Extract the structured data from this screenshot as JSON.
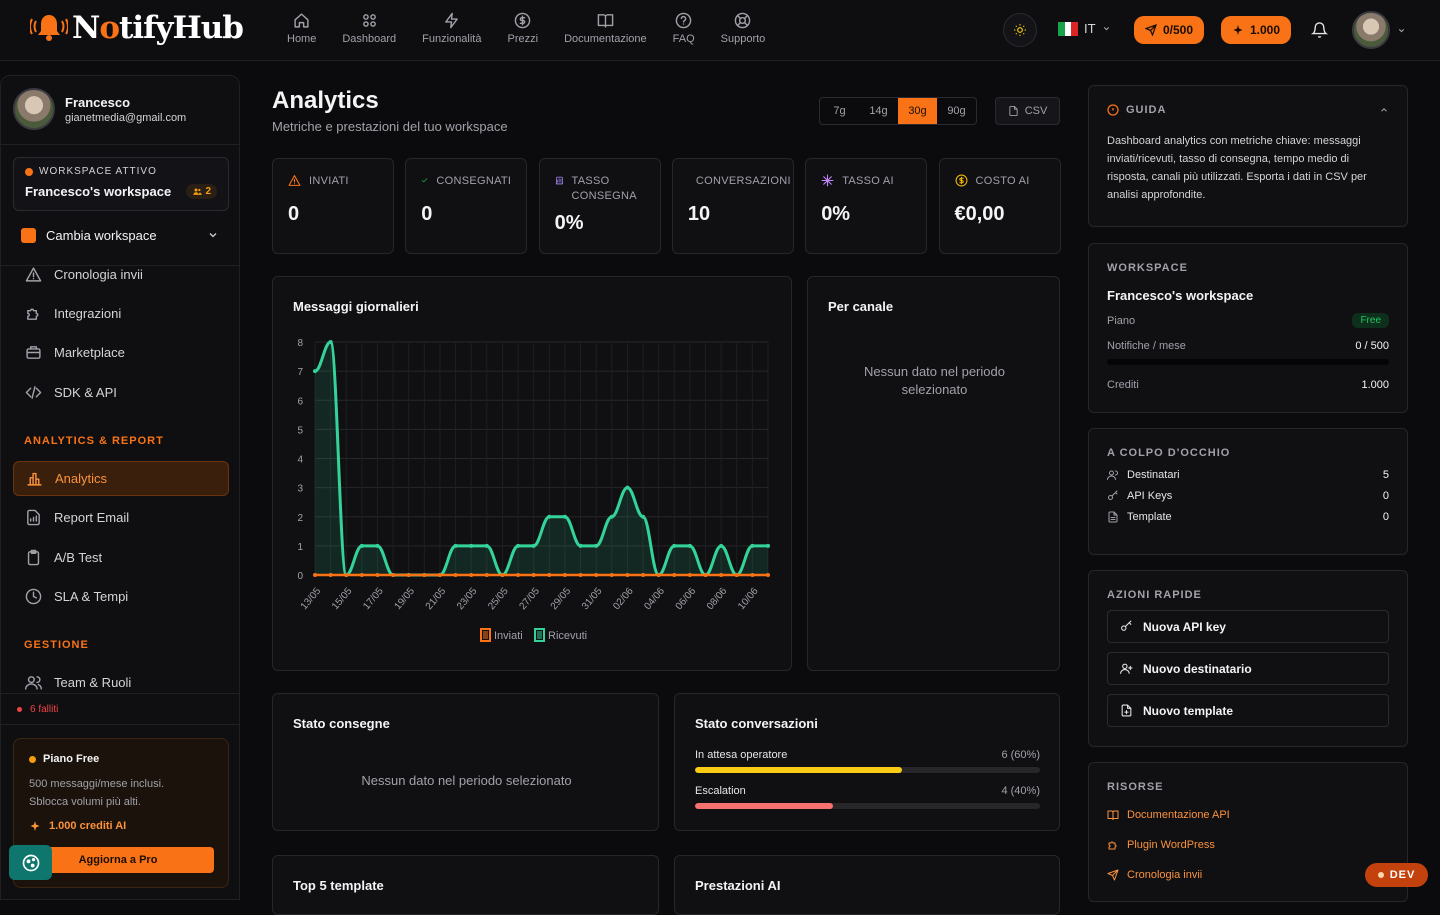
{
  "app": {
    "brand_pre": "N",
    "brand_o": "o",
    "brand_post": "tifyHub"
  },
  "nav": [
    {
      "label": "Home",
      "icon": "home-icon"
    },
    {
      "label": "Dashboard",
      "icon": "grid-icon"
    },
    {
      "label": "Funzionalità",
      "icon": "bolt-icon"
    },
    {
      "label": "Prezzi",
      "icon": "dollar-icon"
    },
    {
      "label": "Documentazione",
      "icon": "book-icon"
    },
    {
      "label": "FAQ",
      "icon": "help-icon"
    },
    {
      "label": "Supporto",
      "icon": "lifebuoy-icon"
    }
  ],
  "header": {
    "lang": "IT",
    "messages_pill": "0/500",
    "credits_pill": "1.000"
  },
  "sidebar": {
    "user_name": "Francesco",
    "user_email": "gianetmedia@gmail.com",
    "ws_label": "WORKSPACE ATTIVO",
    "ws_name": "Francesco's workspace",
    "ws_members": "2",
    "switch_label": "Cambia workspace",
    "items_top": [
      "Cronologia invii",
      "Integrazioni",
      "Marketplace",
      "SDK & API"
    ],
    "section_analytics": "ANALYTICS & REPORT",
    "items_analytics": [
      "Analytics",
      "Report Email",
      "A/B Test",
      "SLA & Tempi"
    ],
    "section_gestione": "GESTIONE",
    "items_gestione": [
      "Team & Ruoli"
    ],
    "failed": "6 falliti",
    "plan_name": "Piano Free",
    "plan_desc1": "500 messaggi/mese inclusi.",
    "plan_desc2": "Sblocca volumi più alti.",
    "plan_credits": "1.000 crediti AI",
    "upgrade": "Aggiorna a Pro"
  },
  "main": {
    "title": "Analytics",
    "subtitle": "Metriche e prestazioni del tuo workspace",
    "ranges": [
      "7g",
      "14g",
      "30g",
      "90g"
    ],
    "active_range": "30g",
    "csv": "CSV",
    "kpis": [
      {
        "label": "INVIATI",
        "value": "0",
        "icon": "warning-triangle-icon",
        "color": "#f97316"
      },
      {
        "label": "CONSEGNATI",
        "value": "0",
        "icon": "check-icon",
        "color": "#22c55e"
      },
      {
        "label": "TASSO CONSEGNA",
        "value": "0%",
        "icon": "bar-chart-icon",
        "color": "#a78bfa"
      },
      {
        "label": "CONVERSAZIONI",
        "value": "10",
        "icon": "chat-icon",
        "color": "#3b82f6"
      },
      {
        "label": "TASSO AI",
        "value": "0%",
        "icon": "sparkle-icon",
        "color": "#c084fc"
      },
      {
        "label": "COSTO AI",
        "value": "€0,00",
        "icon": "coin-icon",
        "color": "#eab308"
      }
    ],
    "daily_title": "Messaggi giornalieri",
    "channel_title": "Per canale",
    "channel_empty": "Nessun dato nel periodo selezionato",
    "delivery_title": "Stato consegne",
    "delivery_empty": "Nessun dato nel periodo selezionato",
    "conv_title": "Stato conversazioni",
    "conv_rows": [
      {
        "label": "In attesa operatore",
        "value": "6 (60%)",
        "pct": 60,
        "color": "#facc15"
      },
      {
        "label": "Escalation",
        "value": "4 (40%)",
        "pct": 40,
        "color": "#f87171"
      }
    ],
    "top_title": "Top 5 template",
    "ai_title": "Prestazioni AI"
  },
  "chart_data": {
    "type": "line",
    "title": "Messaggi giornalieri",
    "x": [
      "13/05",
      "14/05",
      "15/05",
      "16/05",
      "17/05",
      "18/05",
      "19/05",
      "20/05",
      "21/05",
      "22/05",
      "23/05",
      "24/05",
      "25/05",
      "26/05",
      "27/05",
      "28/05",
      "29/05",
      "30/05",
      "31/05",
      "01/06",
      "02/06",
      "03/06",
      "04/06",
      "05/06",
      "06/06",
      "07/06",
      "08/06",
      "09/06",
      "10/06",
      "11/06"
    ],
    "tick_labels": [
      "13/05",
      "15/05",
      "17/05",
      "19/05",
      "21/05",
      "23/05",
      "25/05",
      "27/05",
      "29/05",
      "31/05",
      "02/06",
      "04/06",
      "06/06",
      "08/06",
      "10/06"
    ],
    "series": [
      {
        "name": "Inviati",
        "color": "#f97316",
        "values": [
          0,
          0,
          0,
          0,
          0,
          0,
          0,
          0,
          0,
          0,
          0,
          0,
          0,
          0,
          0,
          0,
          0,
          0,
          0,
          0,
          0,
          0,
          0,
          0,
          0,
          0,
          0,
          0,
          0,
          0
        ]
      },
      {
        "name": "Ricevuti",
        "color": "#34d399",
        "values": [
          7,
          8,
          0,
          1,
          1,
          0,
          0,
          0,
          0,
          1,
          1,
          1,
          0,
          1,
          1,
          2,
          2,
          1,
          1,
          2,
          3,
          2,
          0,
          1,
          1,
          0,
          1,
          0,
          1,
          1
        ]
      }
    ],
    "ylim": [
      0,
      8
    ],
    "yticks": [
      0,
      1,
      2,
      3,
      4,
      5,
      6,
      7,
      8
    ],
    "grid": true,
    "legend": "bottom"
  },
  "right": {
    "guide_title": "GUIDA",
    "guide_text": "Dashboard analytics con metriche chiave: messaggi inviati/ricevuti, tasso di consegna, tempo medio di risposta, canali più utilizzati. Esporta i dati in CSV per analisi approfondite.",
    "ws_title": "WORKSPACE",
    "ws_name": "Francesco's workspace",
    "plan_label": "Piano",
    "plan_value": "Free",
    "notif_label": "Notifiche / mese",
    "notif_value": "0 / 500",
    "notif_pct": 0,
    "credits_label": "Crediti",
    "credits_value": "1.000",
    "glance_title": "A COLPO D'OCCHIO",
    "glance": [
      {
        "label": "Destinatari",
        "value": "5",
        "icon": "users-icon"
      },
      {
        "label": "API Keys",
        "value": "0",
        "icon": "key-icon"
      },
      {
        "label": "Template",
        "value": "0",
        "icon": "file-icon"
      }
    ],
    "actions_title": "AZIONI RAPIDE",
    "actions": [
      {
        "label": "Nuova API key",
        "icon": "key-icon"
      },
      {
        "label": "Nuovo destinatario",
        "icon": "user-plus-icon"
      },
      {
        "label": "Nuovo template",
        "icon": "file-plus-icon"
      }
    ],
    "resources_title": "RISORSE",
    "resources": [
      {
        "label": "Documentazione API",
        "icon": "book-icon"
      },
      {
        "label": "Plugin WordPress",
        "icon": "puzzle-icon"
      },
      {
        "label": "Cronologia invii",
        "icon": "send-icon"
      }
    ]
  },
  "dev": "DEV"
}
